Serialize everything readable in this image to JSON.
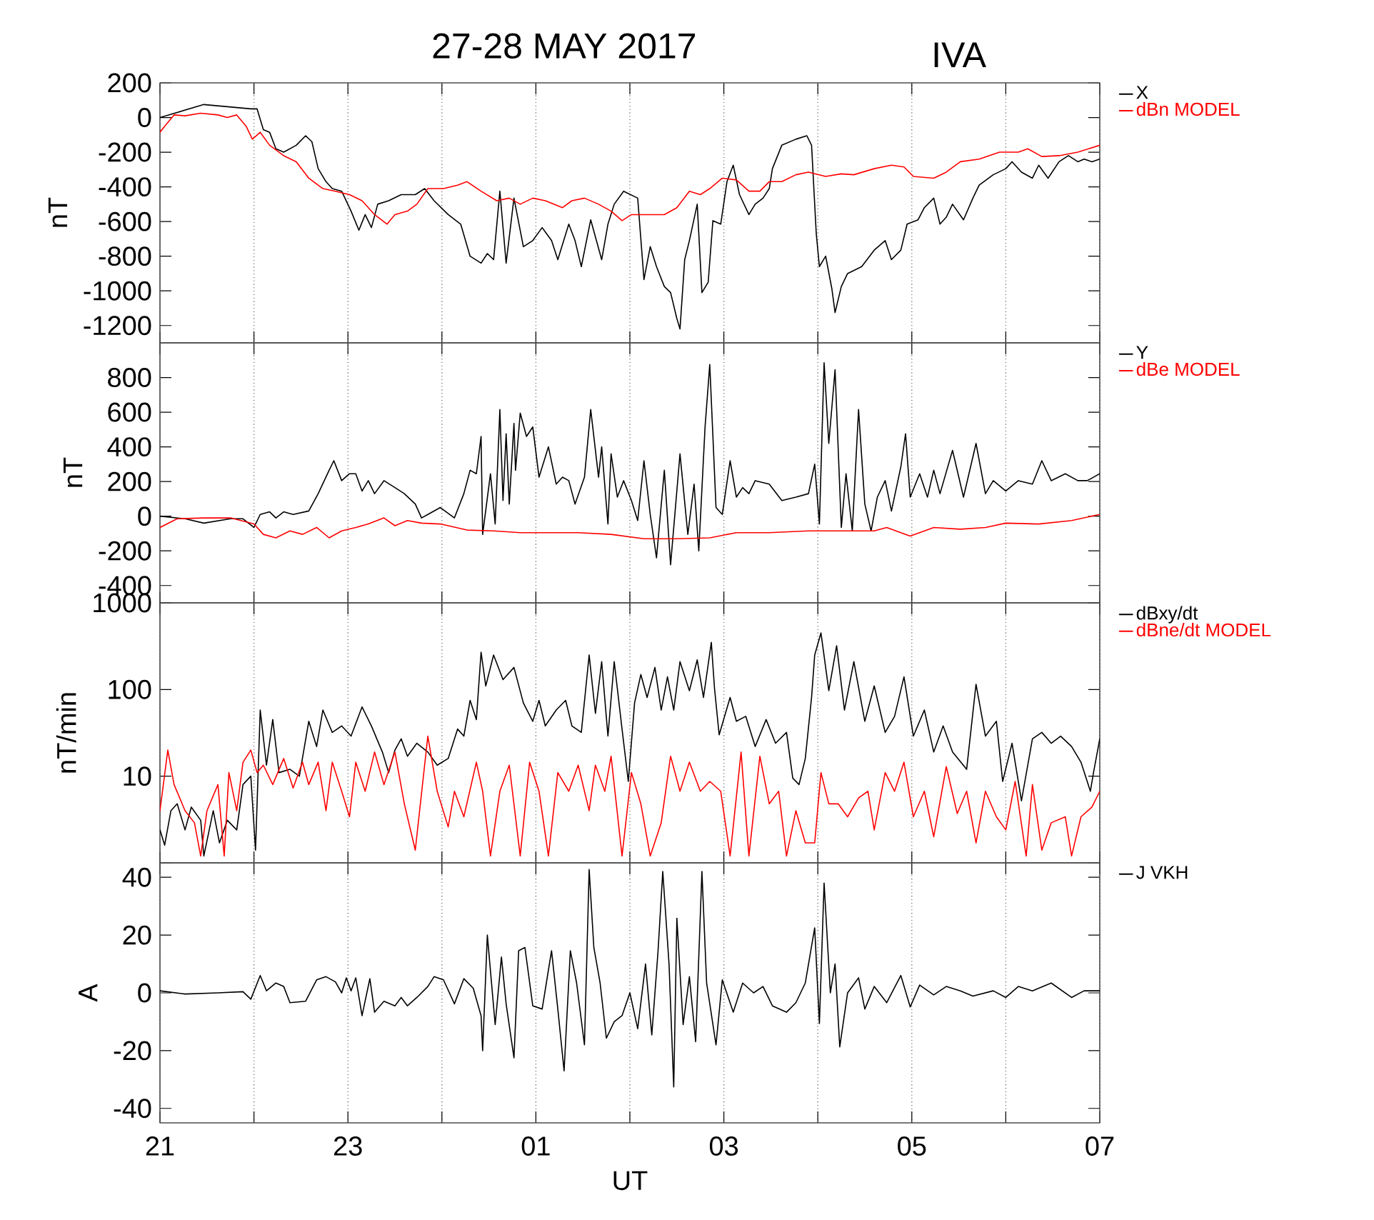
{
  "chart_data": [
    {
      "type": "line",
      "title": "27-28 MAY 2017",
      "subtitle": "IVA",
      "ylabel": "nT",
      "xlim": [
        "2017-05-27T21:00",
        "2017-05-28T07:00"
      ],
      "ylim": [
        -1300,
        200
      ],
      "xticks": [
        {
          "value": "2017-05-27T21:00",
          "label": null
        },
        {
          "value": "2017-05-27T22:00",
          "label": null
        },
        {
          "value": "2017-05-27T23:00",
          "label": null
        },
        {
          "value": "2017-05-28T00:00",
          "label": null
        },
        {
          "value": "2017-05-28T01:00",
          "label": null
        },
        {
          "value": "2017-05-28T02:00",
          "label": null
        },
        {
          "value": "2017-05-28T03:00",
          "label": null
        },
        {
          "value": "2017-05-28T04:00",
          "label": null
        },
        {
          "value": "2017-05-28T05:00",
          "label": null
        },
        {
          "value": "2017-05-28T06:00",
          "label": null
        },
        {
          "value": "2017-05-28T07:00",
          "label": null
        }
      ],
      "yticks": [
        -1200,
        -1000,
        -800,
        -600,
        -400,
        -200,
        0,
        200
      ],
      "grid": "x",
      "legend": "right",
      "tick_labels": "y",
      "series": [
        {
          "name": "X",
          "color": "#000000",
          "x": [
            "2017-05-27T21:00",
            "2017-05-27T21:28",
            "2017-05-27T21:58",
            "2017-05-27T22:02",
            "2017-05-27T22:06",
            "2017-05-27T22:10",
            "2017-05-27T22:14",
            "2017-05-27T22:19",
            "2017-05-27T22:27",
            "2017-05-27T22:33",
            "2017-05-27T22:37",
            "2017-05-27T22:41",
            "2017-05-27T22:46",
            "2017-05-27T22:50",
            "2017-05-27T22:56",
            "2017-05-27T23:02",
            "2017-05-27T23:07",
            "2017-05-27T23:11",
            "2017-05-27T23:15",
            "2017-05-27T23:19",
            "2017-05-27T23:26",
            "2017-05-27T23:34",
            "2017-05-27T23:43",
            "2017-05-27T23:49",
            "2017-05-27T23:55",
            "2017-05-28T00:04",
            "2017-05-28T00:12",
            "2017-05-28T00:18",
            "2017-05-28T00:25",
            "2017-05-28T00:29",
            "2017-05-28T00:33",
            "2017-05-28T00:37",
            "2017-05-28T00:41",
            "2017-05-28T00:46",
            "2017-05-28T00:52",
            "2017-05-28T00:58",
            "2017-05-28T01:04",
            "2017-05-28T01:10",
            "2017-05-28T01:14",
            "2017-05-28T01:21",
            "2017-05-28T01:25",
            "2017-05-28T01:29",
            "2017-05-28T01:35",
            "2017-05-28T01:42",
            "2017-05-28T01:46",
            "2017-05-28T01:50",
            "2017-05-28T01:56",
            "2017-05-28T02:05",
            "2017-05-28T02:09",
            "2017-05-28T02:13",
            "2017-05-28T02:17",
            "2017-05-28T02:22",
            "2017-05-28T02:26",
            "2017-05-28T02:30",
            "2017-05-28T02:32",
            "2017-05-28T02:35",
            "2017-05-28T02:38",
            "2017-05-28T02:43",
            "2017-05-28T02:46",
            "2017-05-28T02:50",
            "2017-05-28T02:53",
            "2017-05-28T02:58",
            "2017-05-28T03:02",
            "2017-05-28T03:06",
            "2017-05-28T03:10",
            "2017-05-28T03:16",
            "2017-05-28T03:20",
            "2017-05-28T03:25",
            "2017-05-28T03:29",
            "2017-05-28T03:31",
            "2017-05-28T03:37",
            "2017-05-28T03:46",
            "2017-05-28T03:53",
            "2017-05-28T03:56",
            "2017-05-28T03:59",
            "2017-05-28T04:01",
            "2017-05-28T04:05",
            "2017-05-28T04:09",
            "2017-05-28T04:11",
            "2017-05-28T04:15",
            "2017-05-28T04:19",
            "2017-05-28T04:28",
            "2017-05-28T04:36",
            "2017-05-28T04:43",
            "2017-05-28T04:47",
            "2017-05-28T04:53",
            "2017-05-28T04:57",
            "2017-05-28T05:04",
            "2017-05-28T05:08",
            "2017-05-28T05:14",
            "2017-05-28T05:18",
            "2017-05-28T05:22",
            "2017-05-28T05:26",
            "2017-05-28T05:33",
            "2017-05-28T05:39",
            "2017-05-28T05:43",
            "2017-05-28T05:52",
            "2017-05-28T06:00",
            "2017-05-28T06:04",
            "2017-05-28T06:10",
            "2017-05-28T06:17",
            "2017-05-28T06:21",
            "2017-05-28T06:27",
            "2017-05-28T06:34",
            "2017-05-28T06:40",
            "2017-05-28T06:46",
            "2017-05-28T06:50",
            "2017-05-28T06:55",
            "2017-05-28T07:00"
          ],
          "values": [
            0,
            75,
            50,
            50,
            -70,
            -85,
            -180,
            -200,
            -160,
            -105,
            -140,
            -295,
            -370,
            -410,
            -425,
            -540,
            -650,
            -560,
            -635,
            -500,
            -480,
            -445,
            -445,
            -410,
            -480,
            -560,
            -615,
            -800,
            -840,
            -785,
            -820,
            -425,
            -840,
            -465,
            -745,
            -710,
            -635,
            -710,
            -820,
            -615,
            -710,
            -860,
            -590,
            -820,
            -615,
            -500,
            -425,
            -465,
            -935,
            -745,
            -860,
            -975,
            -1010,
            -1160,
            -1220,
            -820,
            -710,
            -500,
            -1010,
            -950,
            -595,
            -615,
            -370,
            -275,
            -445,
            -560,
            -500,
            -465,
            -410,
            -295,
            -160,
            -125,
            -105,
            -160,
            -670,
            -860,
            -800,
            -990,
            -1125,
            -975,
            -900,
            -860,
            -765,
            -710,
            -820,
            -765,
            -615,
            -590,
            -520,
            -465,
            -615,
            -575,
            -500,
            -590,
            -465,
            -390,
            -330,
            -295,
            -255,
            -315,
            -350,
            -275,
            -350,
            -255,
            -220,
            -255,
            -240,
            -255,
            -240
          ]
        },
        {
          "name": "dBn MODEL",
          "color": "#ff0000",
          "x": [
            "2017-05-27T21:00",
            "2017-05-27T21:03",
            "2017-05-27T21:09",
            "2017-05-27T21:16",
            "2017-05-27T21:26",
            "2017-05-27T21:37",
            "2017-05-27T21:43",
            "2017-05-27T21:49",
            "2017-05-27T21:55",
            "2017-05-27T21:59",
            "2017-05-27T22:04",
            "2017-05-27T22:10",
            "2017-05-27T22:19",
            "2017-05-27T22:27",
            "2017-05-27T22:35",
            "2017-05-27T22:44",
            "2017-05-27T22:52",
            "2017-05-27T23:01",
            "2017-05-27T23:09",
            "2017-05-27T23:17",
            "2017-05-27T23:25",
            "2017-05-27T23:30",
            "2017-05-27T23:38",
            "2017-05-27T23:44",
            "2017-05-27T23:51",
            "2017-05-28T00:01",
            "2017-05-28T00:10",
            "2017-05-28T00:16",
            "2017-05-28T00:25",
            "2017-05-28T00:35",
            "2017-05-28T00:43",
            "2017-05-28T00:50",
            "2017-05-28T00:58",
            "2017-05-28T01:06",
            "2017-05-28T01:17",
            "2017-05-28T01:23",
            "2017-05-28T01:31",
            "2017-05-28T01:40",
            "2017-05-28T01:48",
            "2017-05-28T01:55",
            "2017-05-28T02:01",
            "2017-05-28T02:09",
            "2017-05-28T02:22",
            "2017-05-28T02:30",
            "2017-05-28T02:38",
            "2017-05-28T02:45",
            "2017-05-28T02:51",
            "2017-05-28T02:59",
            "2017-05-28T03:08",
            "2017-05-28T03:16",
            "2017-05-28T03:23",
            "2017-05-28T03:29",
            "2017-05-28T03:37",
            "2017-05-28T03:46",
            "2017-05-28T03:54",
            "2017-05-28T04:05",
            "2017-05-28T04:15",
            "2017-05-28T04:23",
            "2017-05-28T04:36",
            "2017-05-28T04:47",
            "2017-05-28T04:55",
            "2017-05-28T05:01",
            "2017-05-28T05:14",
            "2017-05-28T05:22",
            "2017-05-28T05:31",
            "2017-05-28T05:43",
            "2017-05-28T05:56",
            "2017-05-28T06:08",
            "2017-05-28T06:14",
            "2017-05-28T06:23",
            "2017-05-28T06:34",
            "2017-05-28T06:46",
            "2017-05-28T07:00"
          ],
          "values": [
            -85,
            -50,
            15,
            10,
            25,
            15,
            0,
            15,
            -50,
            -125,
            -85,
            -160,
            -220,
            -255,
            -350,
            -410,
            -425,
            -445,
            -480,
            -560,
            -615,
            -560,
            -540,
            -500,
            -410,
            -410,
            -390,
            -370,
            -425,
            -480,
            -465,
            -500,
            -465,
            -480,
            -520,
            -480,
            -465,
            -500,
            -540,
            -595,
            -560,
            -560,
            -560,
            -520,
            -425,
            -445,
            -410,
            -350,
            -360,
            -425,
            -425,
            -370,
            -370,
            -330,
            -315,
            -340,
            -325,
            -330,
            -295,
            -275,
            -285,
            -340,
            -350,
            -315,
            -255,
            -240,
            -200,
            -200,
            -180,
            -225,
            -220,
            -200,
            -160
          ]
        }
      ]
    },
    {
      "type": "line",
      "ylabel": "nT",
      "xlim": [
        "2017-05-27T21:00",
        "2017-05-28T07:00"
      ],
      "ylim": [
        -500,
        1000
      ],
      "xticks": [
        {
          "value": "2017-05-27T21:00",
          "label": null
        },
        {
          "value": "2017-05-27T22:00",
          "label": null
        },
        {
          "value": "2017-05-27T23:00",
          "label": null
        },
        {
          "value": "2017-05-28T00:00",
          "label": null
        },
        {
          "value": "2017-05-28T01:00",
          "label": null
        },
        {
          "value": "2017-05-28T02:00",
          "label": null
        },
        {
          "value": "2017-05-28T03:00",
          "label": null
        },
        {
          "value": "2017-05-28T04:00",
          "label": null
        },
        {
          "value": "2017-05-28T05:00",
          "label": null
        },
        {
          "value": "2017-05-28T06:00",
          "label": null
        },
        {
          "value": "2017-05-28T07:00",
          "label": null
        }
      ],
      "yticks": [
        -400,
        -200,
        0,
        200,
        400,
        600,
        800
      ],
      "grid": "x",
      "legend": "right",
      "tick_labels": "y",
      "series": [
        {
          "name": "Y",
          "color": "#000000",
          "x": [
            "2017-05-27T21:00",
            "2017-05-27T21:16",
            "2017-05-27T21:28",
            "2017-05-27T21:45",
            "2017-05-27T21:53",
            "2017-05-27T22:00",
            "2017-05-27T22:04",
            "2017-05-27T22:10",
            "2017-05-27T22:14",
            "2017-05-27T22:19",
            "2017-05-27T22:25",
            "2017-05-27T22:35",
            "2017-05-27T22:41",
            "2017-05-27T22:48",
            "2017-05-27T22:51",
            "2017-05-27T22:56",
            "2017-05-27T23:01",
            "2017-05-27T23:05",
            "2017-05-27T23:09",
            "2017-05-27T23:13",
            "2017-05-27T23:17",
            "2017-05-27T23:23",
            "2017-05-27T23:30",
            "2017-05-27T23:36",
            "2017-05-27T23:43",
            "2017-05-27T23:47",
            "2017-05-27T23:51",
            "2017-05-27T23:59",
            "2017-05-28T00:08",
            "2017-05-28T00:14",
            "2017-05-28T00:18",
            "2017-05-28T00:22",
            "2017-05-28T00:25",
            "2017-05-28T00:26",
            "2017-05-28T00:31",
            "2017-05-28T00:34",
            "2017-05-28T00:37",
            "2017-05-28T00:39",
            "2017-05-28T00:41",
            "2017-05-28T00:43",
            "2017-05-28T00:46",
            "2017-05-28T00:47",
            "2017-05-28T00:50",
            "2017-05-28T00:54",
            "2017-05-28T00:58",
            "2017-05-28T01:02",
            "2017-05-28T01:08",
            "2017-05-28T01:13",
            "2017-05-28T01:17",
            "2017-05-28T01:21",
            "2017-05-28T01:25",
            "2017-05-28T01:31",
            "2017-05-28T01:35",
            "2017-05-28T01:40",
            "2017-05-28T01:42",
            "2017-05-28T01:46",
            "2017-05-28T01:48",
            "2017-05-28T01:52",
            "2017-05-28T01:56",
            "2017-05-28T02:01",
            "2017-05-28T02:05",
            "2017-05-28T02:09",
            "2017-05-28T02:13",
            "2017-05-28T02:17",
            "2017-05-28T02:22",
            "2017-05-28T02:26",
            "2017-05-28T02:32",
            "2017-05-28T02:37",
            "2017-05-28T02:41",
            "2017-05-28T02:44",
            "2017-05-28T02:48",
            "2017-05-28T02:51",
            "2017-05-28T02:55",
            "2017-05-28T02:59",
            "2017-05-28T03:04",
            "2017-05-28T03:08",
            "2017-05-28T03:12",
            "2017-05-28T03:16",
            "2017-05-28T03:20",
            "2017-05-28T03:29",
            "2017-05-28T03:37",
            "2017-05-28T03:46",
            "2017-05-28T03:54",
            "2017-05-28T03:58",
            "2017-05-28T04:01",
            "2017-05-28T04:04",
            "2017-05-28T04:07",
            "2017-05-28T04:11",
            "2017-05-28T04:15",
            "2017-05-28T04:18",
            "2017-05-28T04:22",
            "2017-05-28T04:26",
            "2017-05-28T04:30",
            "2017-05-28T04:34",
            "2017-05-28T04:38",
            "2017-05-28T04:43",
            "2017-05-28T04:47",
            "2017-05-28T04:53",
            "2017-05-28T04:56",
            "2017-05-28T04:59",
            "2017-05-28T05:05",
            "2017-05-28T05:10",
            "2017-05-28T05:14",
            "2017-05-28T05:18",
            "2017-05-28T05:26",
            "2017-05-28T05:33",
            "2017-05-28T05:41",
            "2017-05-28T05:47",
            "2017-05-28T05:52",
            "2017-05-28T06:00",
            "2017-05-28T06:08",
            "2017-05-28T06:17",
            "2017-05-28T06:23",
            "2017-05-28T06:29",
            "2017-05-28T06:38",
            "2017-05-28T06:46",
            "2017-05-28T06:52",
            "2017-05-28T07:00"
          ],
          "values": [
            0,
            -15,
            -40,
            -15,
            -15,
            -65,
            10,
            25,
            -10,
            25,
            10,
            30,
            130,
            265,
            320,
            205,
            245,
            245,
            145,
            205,
            130,
            205,
            165,
            130,
            70,
            -10,
            10,
            50,
            -10,
            130,
            265,
            245,
            460,
            -105,
            245,
            -45,
            615,
            90,
            475,
            70,
            535,
            265,
            595,
            460,
            515,
            225,
            400,
            185,
            225,
            205,
            70,
            225,
            615,
            225,
            400,
            -45,
            360,
            110,
            205,
            90,
            -25,
            320,
            10,
            -240,
            265,
            -280,
            360,
            -105,
            185,
            -200,
            515,
            875,
            50,
            10,
            320,
            110,
            165,
            130,
            205,
            185,
            90,
            110,
            130,
            300,
            -45,
            885,
            420,
            845,
            -65,
            245,
            -85,
            615,
            70,
            -85,
            110,
            205,
            30,
            285,
            475,
            110,
            245,
            110,
            265,
            130,
            380,
            110,
            420,
            130,
            205,
            145,
            205,
            185,
            320,
            205,
            245,
            205,
            205,
            245
          ]
        },
        {
          "name": "dBe MODEL",
          "color": "#ff0000",
          "x": [
            "2017-05-27T21:00",
            "2017-05-27T21:11",
            "2017-05-27T21:28",
            "2017-05-27T21:45",
            "2017-05-27T22:00",
            "2017-05-27T22:06",
            "2017-05-27T22:14",
            "2017-05-27T22:23",
            "2017-05-27T22:31",
            "2017-05-27T22:40",
            "2017-05-27T22:48",
            "2017-05-27T22:56",
            "2017-05-27T23:05",
            "2017-05-27T23:13",
            "2017-05-27T23:23",
            "2017-05-27T23:30",
            "2017-05-27T23:38",
            "2017-05-27T23:47",
            "2017-05-27T23:59",
            "2017-05-28T00:16",
            "2017-05-28T00:33",
            "2017-05-28T00:50",
            "2017-05-28T01:06",
            "2017-05-28T01:27",
            "2017-05-28T01:48",
            "2017-05-28T02:09",
            "2017-05-28T02:30",
            "2017-05-28T02:51",
            "2017-05-28T03:08",
            "2017-05-28T03:29",
            "2017-05-28T03:54",
            "2017-05-28T04:15",
            "2017-05-28T04:36",
            "2017-05-28T04:44",
            "2017-05-28T04:59",
            "2017-05-28T05:14",
            "2017-05-28T05:31",
            "2017-05-28T05:47",
            "2017-05-28T06:00",
            "2017-05-28T06:21",
            "2017-05-28T06:42",
            "2017-05-28T07:00"
          ],
          "values": [
            -65,
            -15,
            -10,
            -10,
            -45,
            -105,
            -125,
            -85,
            -105,
            -65,
            -125,
            -85,
            -65,
            -45,
            -10,
            -55,
            -25,
            -40,
            -45,
            -80,
            -85,
            -95,
            -95,
            -95,
            -105,
            -130,
            -130,
            -125,
            -95,
            -95,
            -85,
            -85,
            -85,
            -65,
            -115,
            -65,
            -75,
            -65,
            -40,
            -45,
            -25,
            10
          ]
        }
      ]
    },
    {
      "type": "line",
      "ylabel": "nT/min",
      "xlim": [
        "2017-05-27T21:00",
        "2017-05-28T07:00"
      ],
      "ylim": [
        1,
        1000
      ],
      "log": true,
      "xticks": [
        {
          "value": "2017-05-27T21:00",
          "label": null
        },
        {
          "value": "2017-05-27T22:00",
          "label": null
        },
        {
          "value": "2017-05-27T23:00",
          "label": null
        },
        {
          "value": "2017-05-28T00:00",
          "label": null
        },
        {
          "value": "2017-05-28T01:00",
          "label": null
        },
        {
          "value": "2017-05-28T02:00",
          "label": null
        },
        {
          "value": "2017-05-28T03:00",
          "label": null
        },
        {
          "value": "2017-05-28T04:00",
          "label": null
        },
        {
          "value": "2017-05-28T05:00",
          "label": null
        },
        {
          "value": "2017-05-28T06:00",
          "label": null
        },
        {
          "value": "2017-05-28T07:00",
          "label": null
        }
      ],
      "yticks": [
        {
          "value": 1,
          "label": null
        },
        10,
        100,
        1000
      ],
      "grid": "x",
      "legend": "right",
      "tick_labels": "y",
      "series": [
        {
          "name": "dBxy/dt",
          "color": "#000000",
          "x": [
            "2017-05-27T21:00",
            "2017-05-27T21:03",
            "2017-05-27T21:07",
            "2017-05-27T21:11",
            "2017-05-27T21:16",
            "2017-05-27T21:20",
            "2017-05-27T21:26",
            "2017-05-27T21:28",
            "2017-05-27T21:34",
            "2017-05-27T21:38",
            "2017-05-27T21:43",
            "2017-05-27T21:49",
            "2017-05-27T21:53",
            "2017-05-27T21:58",
            "2017-05-27T22:01",
            "2017-05-27T22:04",
            "2017-05-27T22:08",
            "2017-05-27T22:12",
            "2017-05-27T22:16",
            "2017-05-27T22:23",
            "2017-05-27T22:29",
            "2017-05-27T22:35",
            "2017-05-27T22:40",
            "2017-05-27T22:44",
            "2017-05-27T22:50",
            "2017-05-27T22:56",
            "2017-05-27T23:02",
            "2017-05-27T23:09",
            "2017-05-27T23:15",
            "2017-05-27T23:22",
            "2017-05-27T23:26",
            "2017-05-27T23:30",
            "2017-05-27T23:34",
            "2017-05-27T23:38",
            "2017-05-27T23:44",
            "2017-05-27T23:51",
            "2017-05-27T23:57",
            "2017-05-28T00:04",
            "2017-05-28T00:10",
            "2017-05-28T00:14",
            "2017-05-28T00:18",
            "2017-05-28T00:22",
            "2017-05-28T00:25",
            "2017-05-28T00:28",
            "2017-05-28T00:33",
            "2017-05-28T00:39",
            "2017-05-28T00:46",
            "2017-05-28T00:52",
            "2017-05-28T00:58",
            "2017-05-28T01:02",
            "2017-05-28T01:06",
            "2017-05-28T01:13",
            "2017-05-28T01:19",
            "2017-05-28T01:23",
            "2017-05-28T01:29",
            "2017-05-28T01:34",
            "2017-05-28T01:38",
            "2017-05-28T01:42",
            "2017-05-28T01:46",
            "2017-05-28T01:50",
            "2017-05-28T01:55",
            "2017-05-28T01:59",
            "2017-05-28T02:03",
            "2017-05-28T02:07",
            "2017-05-28T02:11",
            "2017-05-28T02:16",
            "2017-05-28T02:20",
            "2017-05-28T02:24",
            "2017-05-28T02:28",
            "2017-05-28T02:32",
            "2017-05-28T02:38",
            "2017-05-28T02:43",
            "2017-05-28T02:47",
            "2017-05-28T02:52",
            "2017-05-28T02:54",
            "2017-05-28T02:57",
            "2017-05-28T03:04",
            "2017-05-28T03:08",
            "2017-05-28T03:14",
            "2017-05-28T03:20",
            "2017-05-28T03:27",
            "2017-05-28T03:33",
            "2017-05-28T03:40",
            "2017-05-28T03:44",
            "2017-05-28T03:48",
            "2017-05-28T03:52",
            "2017-05-28T03:56",
            "2017-05-28T03:58",
            "2017-05-28T04:02",
            "2017-05-28T04:07",
            "2017-05-28T04:12",
            "2017-05-28T04:17",
            "2017-05-28T04:23",
            "2017-05-28T04:30",
            "2017-05-28T04:36",
            "2017-05-28T04:43",
            "2017-05-28T04:49",
            "2017-05-28T04:55",
            "2017-05-28T05:01",
            "2017-05-28T05:08",
            "2017-05-28T05:14",
            "2017-05-28T05:20",
            "2017-05-28T05:26",
            "2017-05-28T05:35",
            "2017-05-28T05:41",
            "2017-05-28T05:47",
            "2017-05-28T05:54",
            "2017-05-28T05:58",
            "2017-05-28T06:04",
            "2017-05-28T06:10",
            "2017-05-28T06:17",
            "2017-05-28T06:23",
            "2017-05-28T06:29",
            "2017-05-28T06:35",
            "2017-05-28T06:42",
            "2017-05-28T06:48",
            "2017-05-28T06:54",
            "2017-05-28T06:56",
            "2017-05-28T07:00"
          ],
          "values": [
            2.4,
            1.6,
            4,
            4.8,
            2.4,
            4.4,
            3.1,
            1.2,
            4,
            1.7,
            3.1,
            2.4,
            8,
            10,
            1.4,
            58,
            13.4,
            45,
            11,
            12,
            10,
            43,
            22,
            58,
            32,
            38,
            29,
            63,
            38,
            19,
            11,
            20,
            27,
            17,
            24,
            19,
            13.4,
            16,
            35,
            29,
            75,
            45,
            270,
            110,
            250,
            130,
            180,
            70,
            43,
            75,
            38,
            58,
            75,
            38,
            32,
            250,
            53,
            210,
            29,
            210,
            35,
            8.7,
            70,
            149,
            81,
            180,
            58,
            140,
            58,
            210,
            97,
            220,
            81,
            350,
            105,
            30,
            81,
            43,
            49,
            22,
            45,
            24,
            32,
            9.5,
            8,
            16,
            81,
            250,
            450,
            97,
            320,
            58,
            210,
            43,
            110,
            32,
            49,
            140,
            29,
            58,
            19,
            38,
            19,
            12,
            115,
            29,
            43,
            8.7,
            24,
            5.2,
            27,
            32,
            24,
            29,
            22,
            14.5,
            6.7,
            11,
            27
          ]
        },
        {
          "name": "dBne/dt MODEL",
          "color": "#ff0000",
          "x": [
            "2017-05-27T21:00",
            "2017-05-27T21:05",
            "2017-05-27T21:09",
            "2017-05-27T21:16",
            "2017-05-27T21:22",
            "2017-05-27T21:26",
            "2017-05-27T21:30",
            "2017-05-27T21:37",
            "2017-05-27T21:41",
            "2017-05-27T21:44",
            "2017-05-27T21:49",
            "2017-05-27T21:53",
            "2017-05-27T21:58",
            "2017-05-27T22:02",
            "2017-05-27T22:06",
            "2017-05-27T22:12",
            "2017-05-27T22:19",
            "2017-05-27T22:25",
            "2017-05-27T22:31",
            "2017-05-27T22:35",
            "2017-05-27T22:41",
            "2017-05-27T22:46",
            "2017-05-27T22:50",
            "2017-05-27T22:56",
            "2017-05-27T23:01",
            "2017-05-27T23:05",
            "2017-05-27T23:11",
            "2017-05-27T23:17",
            "2017-05-27T23:23",
            "2017-05-27T23:30",
            "2017-05-27T23:36",
            "2017-05-27T23:43",
            "2017-05-27T23:51",
            "2017-05-27T23:57",
            "2017-05-28T00:04",
            "2017-05-28T00:08",
            "2017-05-28T00:14",
            "2017-05-28T00:22",
            "2017-05-28T00:26",
            "2017-05-28T00:31",
            "2017-05-28T00:37",
            "2017-05-28T00:43",
            "2017-05-28T00:50",
            "2017-05-28T00:56",
            "2017-05-28T01:02",
            "2017-05-28T01:08",
            "2017-05-28T01:14",
            "2017-05-28T01:21",
            "2017-05-28T01:27",
            "2017-05-28T01:34",
            "2017-05-28T01:38",
            "2017-05-28T01:44",
            "2017-05-28T01:48",
            "2017-05-28T01:55",
            "2017-05-28T02:01",
            "2017-05-28T02:07",
            "2017-05-28T02:13",
            "2017-05-28T02:20",
            "2017-05-28T02:26",
            "2017-05-28T02:32",
            "2017-05-28T02:38",
            "2017-05-28T02:45",
            "2017-05-28T02:51",
            "2017-05-28T02:58",
            "2017-05-28T03:04",
            "2017-05-28T03:11",
            "2017-05-28T03:16",
            "2017-05-28T03:23",
            "2017-05-28T03:29",
            "2017-05-28T03:35",
            "2017-05-28T03:40",
            "2017-05-28T03:46",
            "2017-05-28T03:52",
            "2017-05-28T03:58",
            "2017-05-28T04:02",
            "2017-05-28T04:07",
            "2017-05-28T04:13",
            "2017-05-28T04:19",
            "2017-05-28T04:26",
            "2017-05-28T04:32",
            "2017-05-28T04:36",
            "2017-05-28T04:43",
            "2017-05-28T04:49",
            "2017-05-28T04:55",
            "2017-05-28T05:01",
            "2017-05-28T05:08",
            "2017-05-28T05:14",
            "2017-05-28T05:22",
            "2017-05-28T05:29",
            "2017-05-28T05:35",
            "2017-05-28T05:41",
            "2017-05-28T05:47",
            "2017-05-28T05:54",
            "2017-05-28T06:00",
            "2017-05-28T06:06",
            "2017-05-28T06:13",
            "2017-05-28T06:17",
            "2017-05-28T06:23",
            "2017-05-28T06:29",
            "2017-05-28T06:38",
            "2017-05-28T06:42",
            "2017-05-28T06:48",
            "2017-05-28T06:55",
            "2017-05-28T07:00"
          ],
          "values": [
            4,
            20,
            8,
            4,
            2.9,
            1.2,
            4,
            8,
            1.2,
            11,
            4,
            14.5,
            20,
            11,
            13.4,
            8,
            16,
            7.3,
            14.5,
            8,
            14.5,
            4,
            14.5,
            6.7,
            3.4,
            14.5,
            6.7,
            19,
            8,
            19,
            4.8,
            1.4,
            29,
            6.7,
            2.6,
            6.7,
            3.4,
            14.5,
            6.7,
            1.2,
            6.7,
            13.4,
            1.2,
            14.5,
            6.7,
            1.2,
            11,
            6.7,
            13.4,
            4,
            13.4,
            6.7,
            17,
            1.2,
            11,
            4.8,
            1.2,
            2.9,
            17,
            6.7,
            14.5,
            6.7,
            8.7,
            6.7,
            1.2,
            19,
            1.2,
            17,
            4.8,
            6.7,
            1.2,
            4,
            1.7,
            1.7,
            11,
            4.8,
            4.8,
            3.4,
            5.6,
            6.7,
            2.4,
            11,
            6.7,
            14.5,
            3.4,
            6.7,
            2,
            12.9,
            3.7,
            6.7,
            1.7,
            6.7,
            3.4,
            2.4,
            8.7,
            1.2,
            8,
            1.4,
            2.9,
            3.4,
            1.2,
            3.4,
            4.4,
            6.7
          ]
        }
      ]
    },
    {
      "type": "line",
      "ylabel": "A",
      "xlabel": "UT",
      "xlim": [
        "2017-05-27T21:00",
        "2017-05-28T07:00"
      ],
      "ylim": [
        -45,
        45
      ],
      "xticks": [
        {
          "value": "2017-05-27T21:00",
          "label": "21"
        },
        {
          "value": "2017-05-27T22:00",
          "label": null
        },
        {
          "value": "2017-05-27T23:00",
          "label": "23"
        },
        {
          "value": "2017-05-28T00:00",
          "label": null
        },
        {
          "value": "2017-05-28T01:00",
          "label": "01"
        },
        {
          "value": "2017-05-28T02:00",
          "label": null
        },
        {
          "value": "2017-05-28T03:00",
          "label": "03"
        },
        {
          "value": "2017-05-28T04:00",
          "label": null
        },
        {
          "value": "2017-05-28T05:00",
          "label": "05"
        },
        {
          "value": "2017-05-28T06:00",
          "label": null
        },
        {
          "value": "2017-05-28T07:00",
          "label": "07"
        }
      ],
      "yticks": [
        -40,
        -20,
        0,
        20,
        40
      ],
      "grid": "x",
      "legend": "right",
      "series": [
        {
          "name": "J VKH",
          "color": "#000000",
          "x": [
            "2017-05-27T21:00",
            "2017-05-27T21:16",
            "2017-05-27T21:37",
            "2017-05-27T21:53",
            "2017-05-27T21:58",
            "2017-05-27T22:04",
            "2017-05-27T22:08",
            "2017-05-27T22:14",
            "2017-05-27T22:19",
            "2017-05-27T22:23",
            "2017-05-27T22:33",
            "2017-05-27T22:40",
            "2017-05-27T22:46",
            "2017-05-27T22:52",
            "2017-05-27T22:56",
            "2017-05-27T22:59",
            "2017-05-27T23:02",
            "2017-05-27T23:05",
            "2017-05-27T23:09",
            "2017-05-27T23:14",
            "2017-05-27T23:17",
            "2017-05-27T23:23",
            "2017-05-27T23:30",
            "2017-05-27T23:34",
            "2017-05-27T23:38",
            "2017-05-27T23:44",
            "2017-05-27T23:51",
            "2017-05-27T23:55",
            "2017-05-28T00:01",
            "2017-05-28T00:08",
            "2017-05-28T00:14",
            "2017-05-28T00:20",
            "2017-05-28T00:25",
            "2017-05-28T00:26",
            "2017-05-28T00:29",
            "2017-05-28T00:34",
            "2017-05-28T00:38",
            "2017-05-28T00:41",
            "2017-05-28T00:46",
            "2017-05-28T00:49",
            "2017-05-28T00:53",
            "2017-05-28T00:58",
            "2017-05-28T01:04",
            "2017-05-28T01:10",
            "2017-05-28T01:14",
            "2017-05-28T01:18",
            "2017-05-28T01:22",
            "2017-05-28T01:26",
            "2017-05-28T01:31",
            "2017-05-28T01:34",
            "2017-05-28T01:37",
            "2017-05-28T01:41",
            "2017-05-28T01:45",
            "2017-05-28T01:50",
            "2017-05-28T01:55",
            "2017-05-28T02:00",
            "2017-05-28T02:05",
            "2017-05-28T02:10",
            "2017-05-28T02:14",
            "2017-05-28T02:18",
            "2017-05-28T02:21",
            "2017-05-28T02:25",
            "2017-05-28T02:28",
            "2017-05-28T02:30",
            "2017-05-28T02:34",
            "2017-05-28T02:38",
            "2017-05-28T02:42",
            "2017-05-28T02:46",
            "2017-05-28T02:49",
            "2017-05-28T02:55",
            "2017-05-28T02:59",
            "2017-05-28T03:06",
            "2017-05-28T03:12",
            "2017-05-28T03:19",
            "2017-05-28T03:25",
            "2017-05-28T03:31",
            "2017-05-28T03:40",
            "2017-05-28T03:46",
            "2017-05-28T03:52",
            "2017-05-28T03:58",
            "2017-05-28T04:01",
            "2017-05-28T04:04",
            "2017-05-28T04:08",
            "2017-05-28T04:11",
            "2017-05-28T04:14",
            "2017-05-28T04:19",
            "2017-05-28T04:26",
            "2017-05-28T04:30",
            "2017-05-28T04:36",
            "2017-05-28T04:44",
            "2017-05-28T04:53",
            "2017-05-28T04:59",
            "2017-05-28T05:05",
            "2017-05-28T05:14",
            "2017-05-28T05:22",
            "2017-05-28T05:31",
            "2017-05-28T05:39",
            "2017-05-28T05:52",
            "2017-05-28T06:00",
            "2017-05-28T06:08",
            "2017-05-28T06:17",
            "2017-05-28T06:29",
            "2017-05-28T06:42",
            "2017-05-28T06:50",
            "2017-05-28T07:00"
          ],
          "values": [
            0.7,
            -0.4,
            0,
            0.4,
            -2.2,
            6,
            0.7,
            3.4,
            2.2,
            -3.4,
            -2.9,
            4.5,
            5.6,
            3.8,
            0,
            5.2,
            0.7,
            5.2,
            -7.9,
            4.9,
            -6.7,
            -2.9,
            -4.5,
            -1.6,
            -4.5,
            -1.6,
            2.2,
            5.6,
            4.5,
            -3.8,
            4.9,
            1.6,
            -7.9,
            -20,
            20,
            -11,
            12.4,
            -3.8,
            -22.5,
            14.6,
            15.7,
            -4.5,
            -5.6,
            14.6,
            -5.6,
            -27,
            14.6,
            3.4,
            -18,
            42.7,
            15.7,
            3.4,
            -15.7,
            -10,
            -7.9,
            0,
            -12.4,
            10,
            -14.6,
            14.6,
            42,
            10,
            -32.6,
            25.8,
            -11,
            5.6,
            -16.9,
            42,
            3.4,
            -18,
            4.5,
            -6.7,
            3.4,
            0,
            2.2,
            -4.5,
            -6.7,
            -3.4,
            3.4,
            22.5,
            -10.6,
            38,
            0,
            10,
            -18.7,
            0,
            5.2,
            -5.6,
            2.2,
            -3.4,
            6,
            -4.9,
            2.7,
            -0.7,
            2.2,
            0.7,
            -1.1,
            0.7,
            -1.6,
            2.2,
            0.7,
            3.4,
            -1.6,
            0.7,
            0.7
          ]
        }
      ]
    }
  ]
}
